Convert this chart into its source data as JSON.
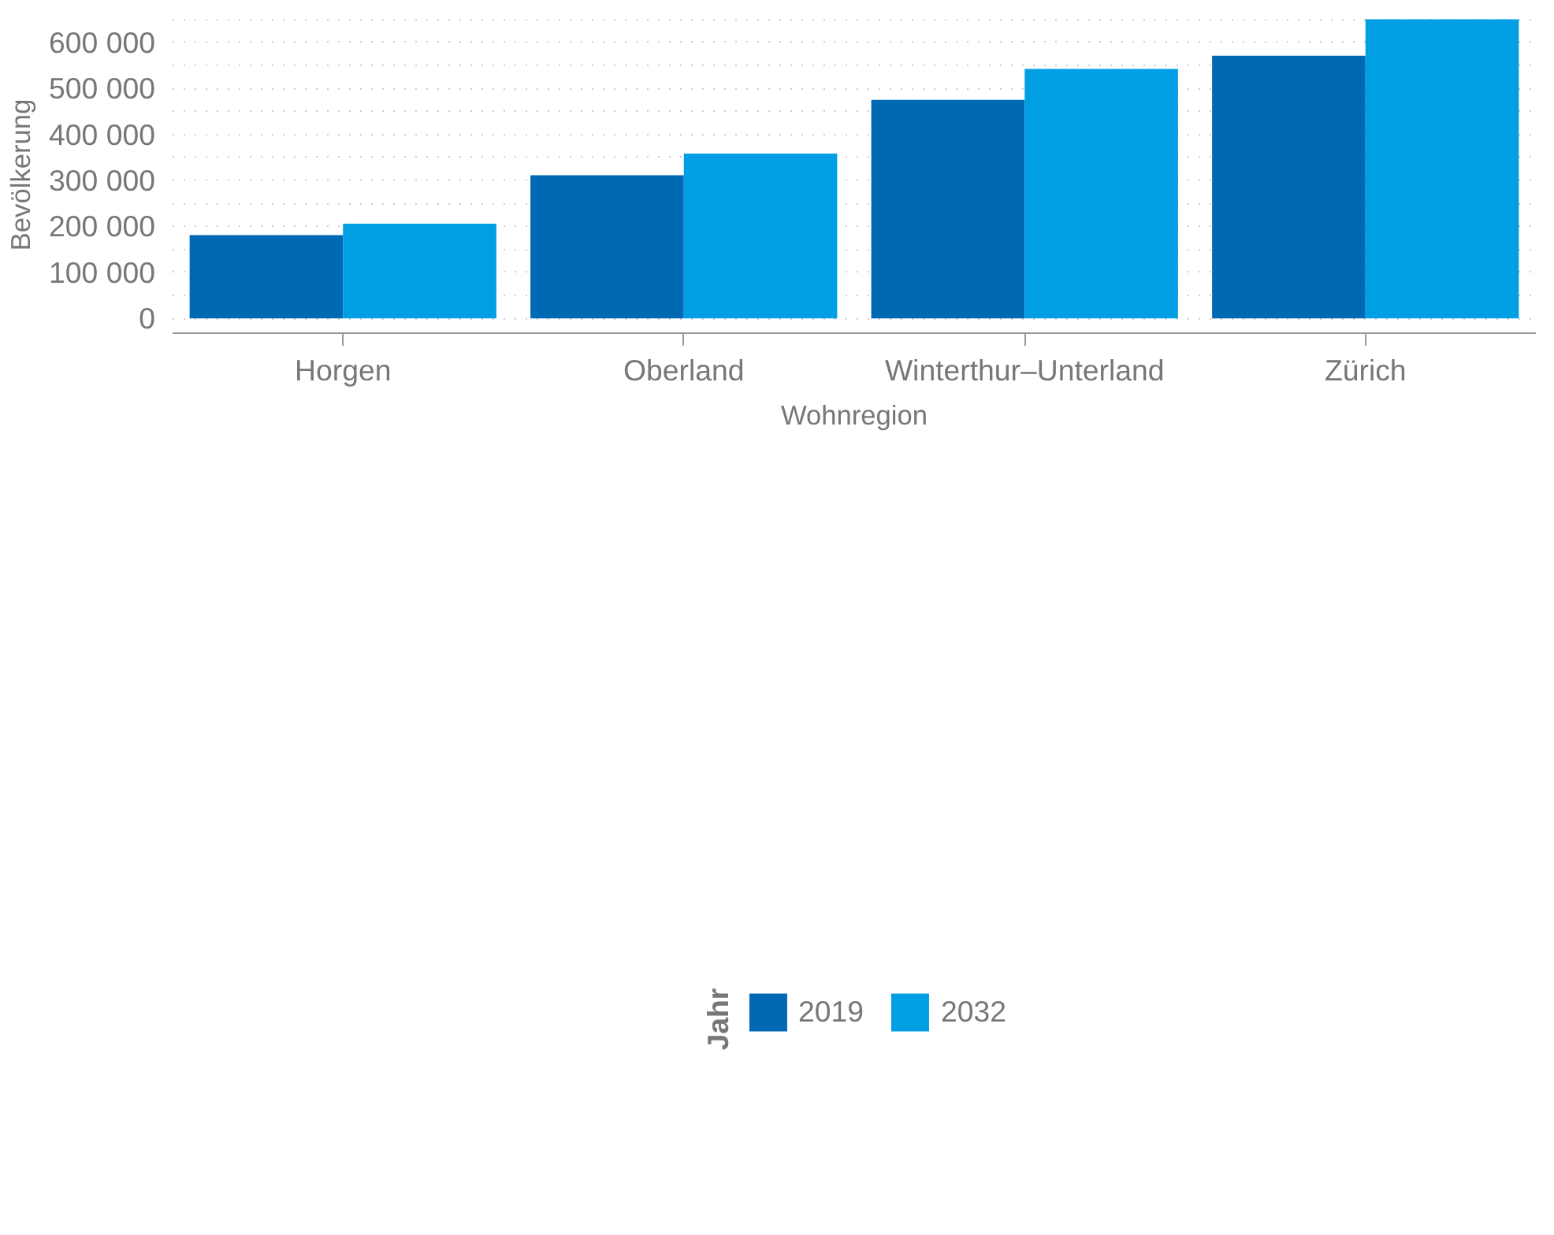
{
  "chart_data": {
    "type": "bar",
    "xlabel": "Wohnregion",
    "ylabel": "Bevölkerung",
    "legend_title": "Jahr",
    "categories": [
      "Horgen",
      "Oberland",
      "Winterthur–Unterland",
      "Zürich"
    ],
    "series": [
      {
        "name": "2019",
        "color": "#0069b4",
        "values": [
          181000,
          311000,
          475000,
          571000
        ]
      },
      {
        "name": "2032",
        "color": "#009fe3",
        "values": [
          206000,
          358000,
          542000,
          650000
        ]
      }
    ],
    "ylim": [
      -32000,
      656000
    ],
    "yticks": [
      {
        "value": 0,
        "label": "0"
      },
      {
        "value": 50000,
        "label": null
      },
      {
        "value": 100000,
        "label": "100 000"
      },
      {
        "value": 150000,
        "label": null
      },
      {
        "value": 200000,
        "label": "200 000"
      },
      {
        "value": 250000,
        "label": null
      },
      {
        "value": 300000,
        "label": "300 000"
      },
      {
        "value": 350000,
        "label": null
      },
      {
        "value": 400000,
        "label": "400 000"
      },
      {
        "value": 450000,
        "label": null
      },
      {
        "value": 500000,
        "label": "500 000"
      },
      {
        "value": 550000,
        "label": null
      },
      {
        "value": 600000,
        "label": "600 000"
      },
      {
        "value": 650000,
        "label": null
      }
    ],
    "grid": "y",
    "legend": "bottom"
  }
}
